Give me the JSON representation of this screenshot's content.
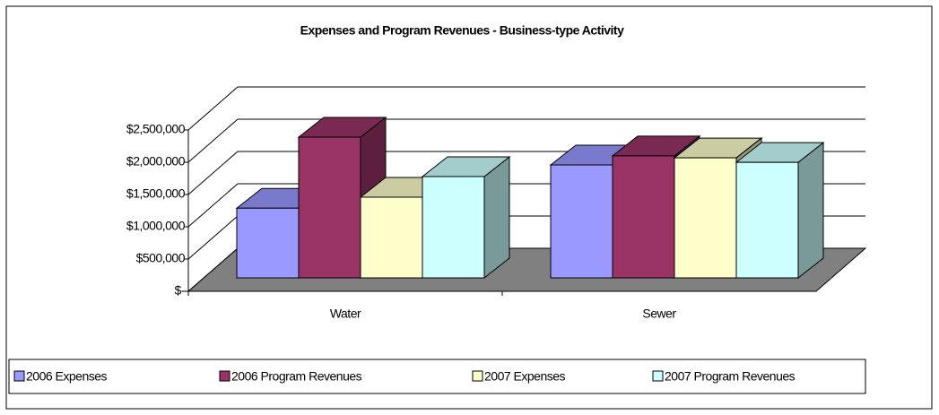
{
  "chart_data": {
    "type": "bar3d",
    "title": "Expenses and Program Revenues - Business-type Activity",
    "categories": [
      "Water",
      "Sewer"
    ],
    "series": [
      {
        "name": "2006 Expenses",
        "color": "#9999ff",
        "values": [
          1080000,
          1750000
        ]
      },
      {
        "name": "2006 Program Revenues",
        "color": "#993366",
        "values": [
          2180000,
          1890000
        ]
      },
      {
        "name": "2007 Expenses",
        "color": "#ffffcc",
        "values": [
          1250000,
          1860000
        ]
      },
      {
        "name": "2007 Program Revenues",
        "color": "#ccffff",
        "values": [
          1570000,
          1790000
        ]
      }
    ],
    "ylim": [
      0,
      2500000
    ],
    "yticks": [
      {
        "value": 0,
        "label": "$-"
      },
      {
        "value": 500000,
        "label": "$500,000"
      },
      {
        "value": 1000000,
        "label": "$1,000,000"
      },
      {
        "value": 1500000,
        "label": "$1,500,000"
      },
      {
        "value": 2000000,
        "label": "$2,000,000"
      },
      {
        "value": 2500000,
        "label": "$2,500,000"
      }
    ],
    "grid": true,
    "legend": "bottom",
    "floor_color": "#808080"
  }
}
